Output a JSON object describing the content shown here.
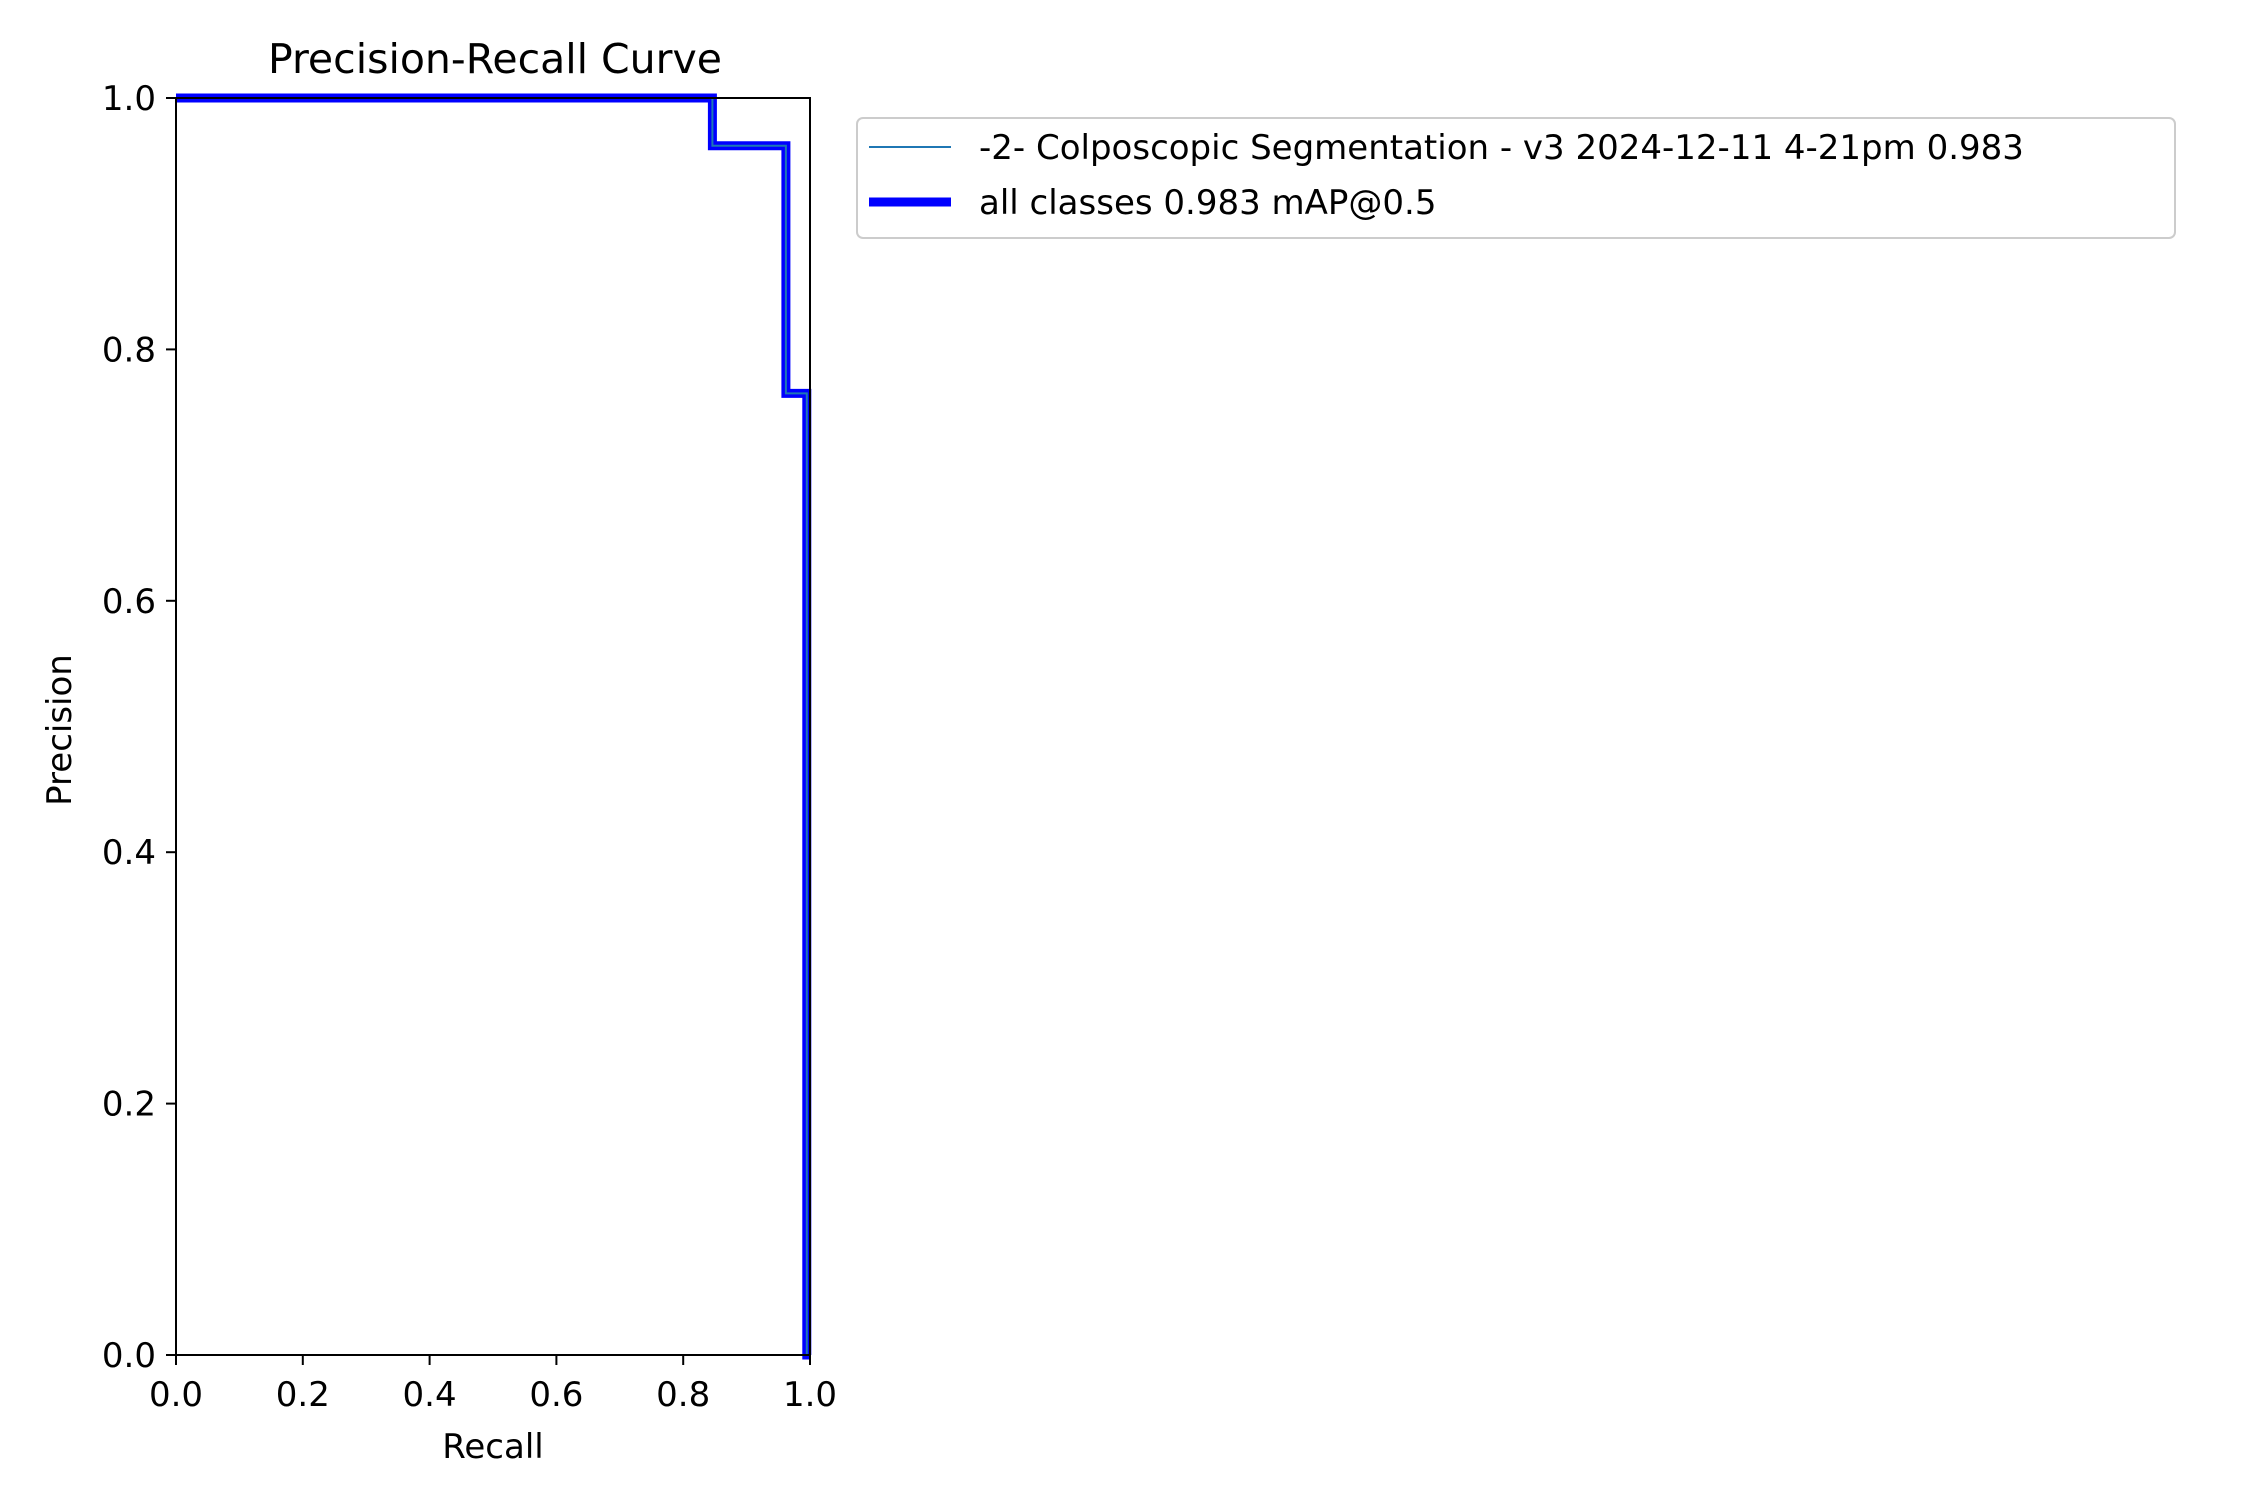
{
  "chart_data": {
    "type": "line",
    "title": "Precision-Recall Curve",
    "xlabel": "Recall",
    "ylabel": "Precision",
    "xlim": [
      0.0,
      1.0
    ],
    "ylim": [
      0.0,
      1.0
    ],
    "x_ticks": [
      "0.0",
      "0.2",
      "0.4",
      "0.6",
      "0.8",
      "1.0"
    ],
    "y_ticks": [
      "0.0",
      "0.2",
      "0.4",
      "0.6",
      "0.8",
      "1.0"
    ],
    "grid": false,
    "legend_placement": "outside upper right",
    "series": [
      {
        "name": "-2- Colposcopic Segmentation - v3 2024-12-11 4-21pm 0.983",
        "color": "#1f77b4",
        "style": "thin",
        "x": [
          0.0,
          0.846,
          0.846,
          0.962,
          0.962,
          0.995,
          0.995,
          1.0
        ],
        "y": [
          1.0,
          1.0,
          0.962,
          0.962,
          0.765,
          0.765,
          0.0,
          0.0
        ]
      },
      {
        "name": "all classes 0.983 mAP@0.5",
        "color": "#0000ff",
        "style": "thick",
        "x": [
          0.0,
          0.846,
          0.846,
          0.962,
          0.962,
          0.995,
          0.995,
          1.0
        ],
        "y": [
          1.0,
          1.0,
          0.962,
          0.962,
          0.765,
          0.765,
          0.0,
          0.0
        ]
      }
    ]
  }
}
